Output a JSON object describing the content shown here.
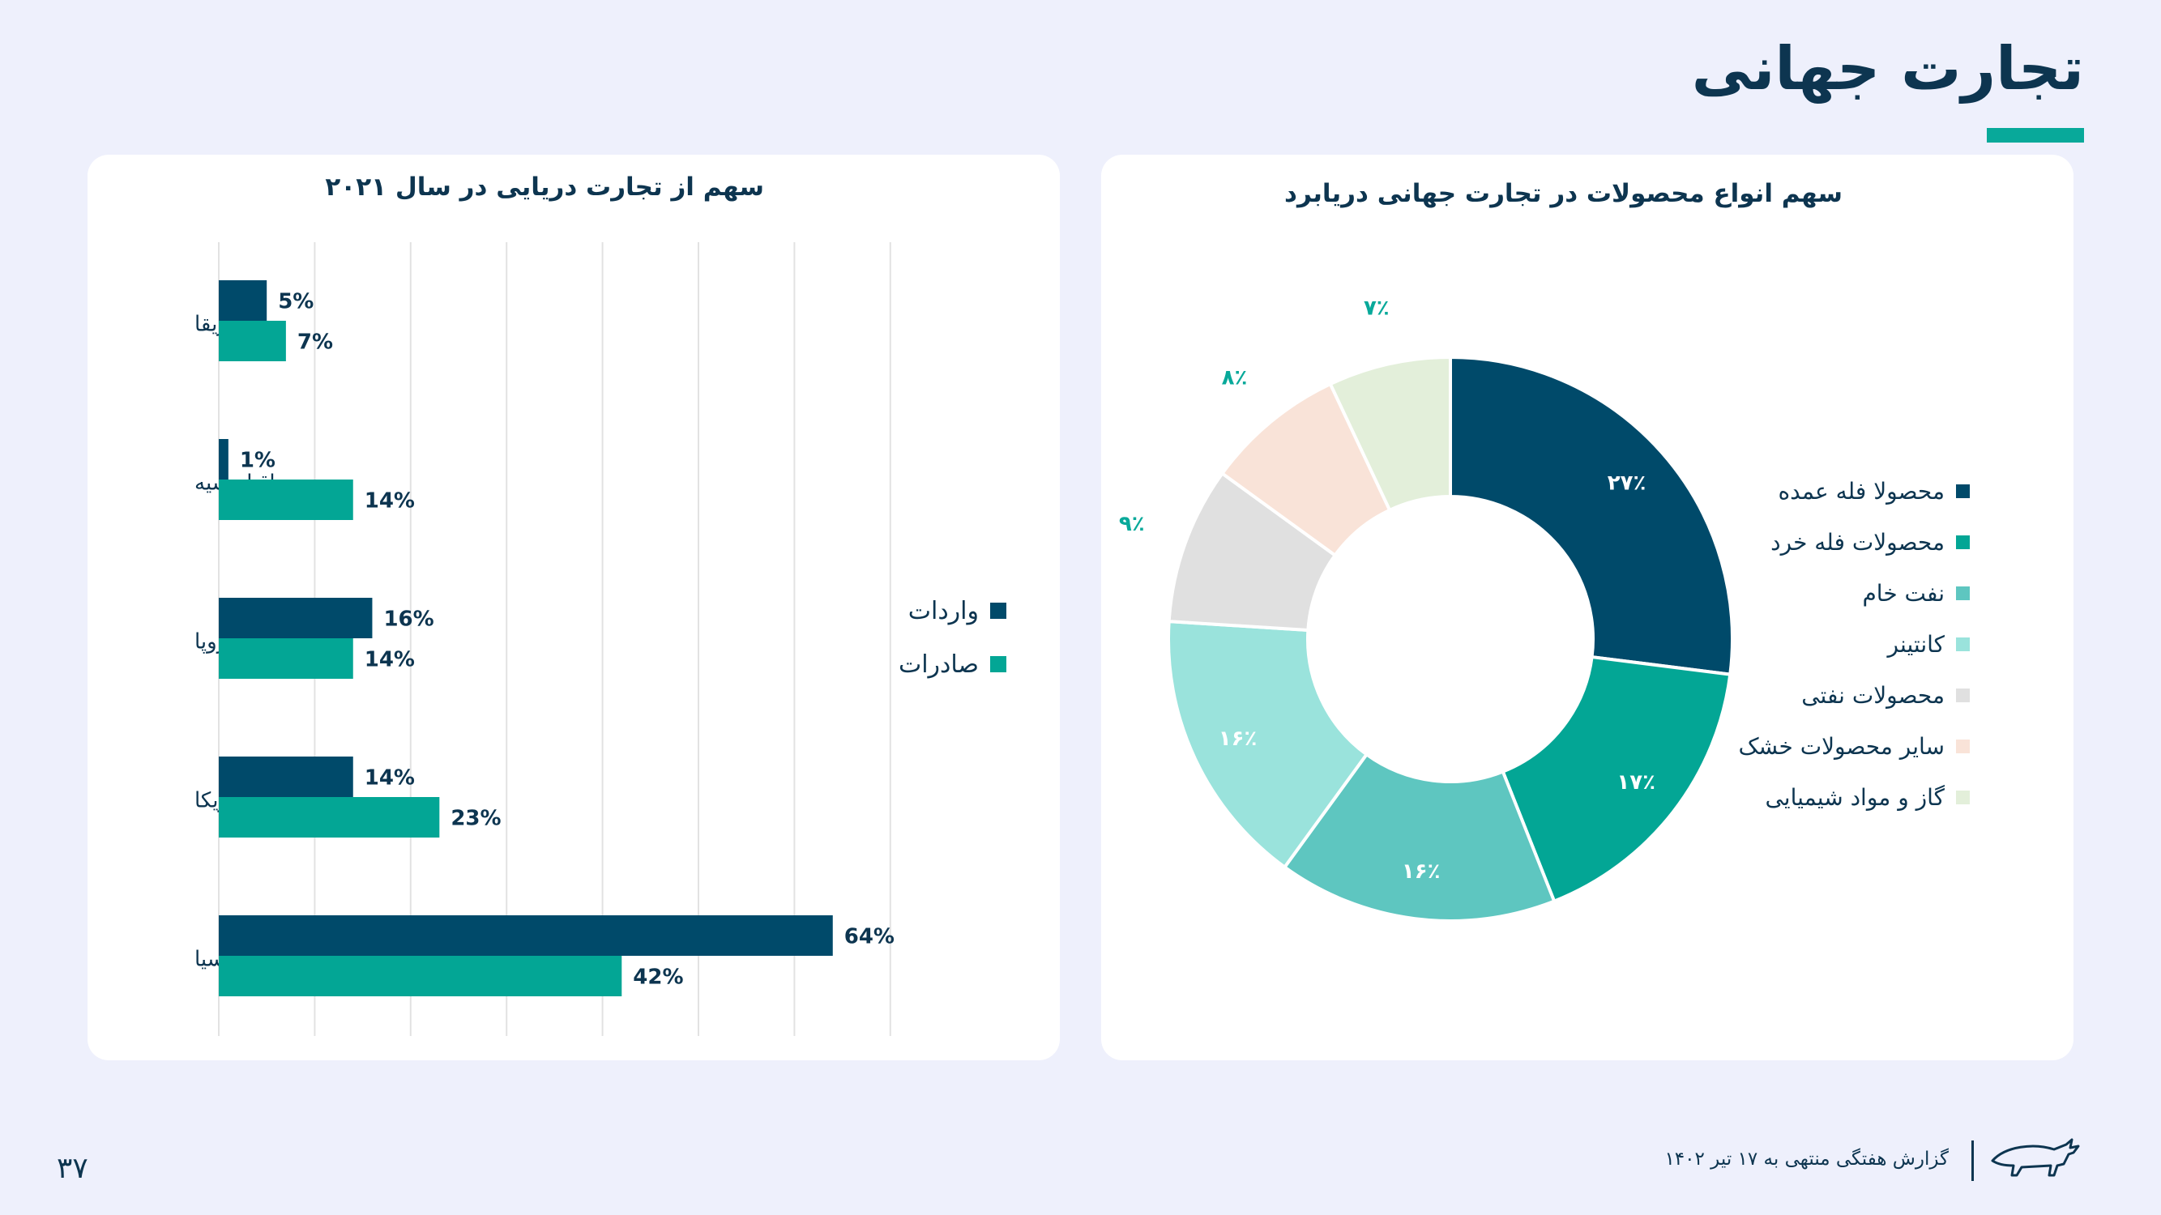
{
  "page": {
    "title": "تجارت جهانی",
    "accent_color": "#08a99a",
    "page_number": "۳۷",
    "footer_text": "گزارش هفتگی منتهی به ۱۷ تیر ۱۴۰۲",
    "logo_icon": "bull-logo-icon"
  },
  "chart_data": [
    {
      "type": "bar",
      "orientation": "horizontal",
      "title": "سهم از تجارت دریایی در سال ۲۰۲۱",
      "categories": [
        "آفریقا",
        "اقیانوسیه",
        "اروپا",
        "آمریکا",
        "آسیا"
      ],
      "series": [
        {
          "name": "واردات",
          "color": "#004a6a",
          "values": [
            5,
            1,
            16,
            14,
            64
          ],
          "labels": [
            "5%",
            "1%",
            "16%",
            "14%",
            "64%"
          ]
        },
        {
          "name": "صادرات",
          "color": "#03a695",
          "values": [
            7,
            14,
            14,
            23,
            42
          ],
          "labels": [
            "7%",
            "14%",
            "14%",
            "23%",
            "42%"
          ]
        }
      ],
      "xlim": [
        0,
        70
      ],
      "grid": true,
      "legend_position": "right"
    },
    {
      "type": "pie",
      "donut": true,
      "title": "سهم انواع محصولات در تجارت جهانی دریابرد",
      "categories": [
        "محصولا فله عمده",
        "محصولات فله خرد",
        "نفت خام",
        "کانتینر",
        "محصولات نفتی",
        "سایر محصولات خشک",
        "گاز و مواد شیمیایی"
      ],
      "values": [
        27,
        17,
        16,
        16,
        9,
        8,
        7
      ],
      "labels": [
        "۲۷٪",
        "۱۷٪",
        "۱۶٪",
        "۱۶٪",
        "۹٪",
        "۸٪",
        "۷٪"
      ],
      "colors": [
        "#004a6a",
        "#03a695",
        "#5ec6c0",
        "#9ae3dc",
        "#e0e0e0",
        "#f9e3d8",
        "#e3efda"
      ],
      "label_colors": [
        "#ffffff",
        "#ffffff",
        "#ffffff",
        "#ffffff",
        "#08a99a",
        "#08a99a",
        "#08a99a"
      ],
      "legend_position": "right"
    }
  ]
}
